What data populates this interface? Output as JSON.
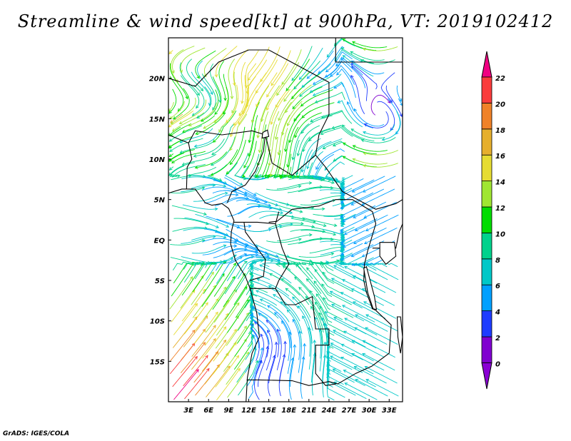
{
  "title": "Streamline & wind speed[kt] at 900hPa, VT: 2019102412",
  "footer": "GrADS: IGES/COLA",
  "map": {
    "lon_range": [
      0,
      35
    ],
    "lat_range": [
      -20,
      25
    ],
    "lat_labels": [
      {
        "lat": 20,
        "label": "20N"
      },
      {
        "lat": 15,
        "label": "15N"
      },
      {
        "lat": 10,
        "label": "10N"
      },
      {
        "lat": 5,
        "label": "5N"
      },
      {
        "lat": 0,
        "label": "EQ"
      },
      {
        "lat": -5,
        "label": "5S"
      },
      {
        "lat": -10,
        "label": "10S"
      },
      {
        "lat": -15,
        "label": "15S"
      }
    ],
    "lon_labels": [
      {
        "lon": 3,
        "label": "3E"
      },
      {
        "lon": 6,
        "label": "6E"
      },
      {
        "lon": 9,
        "label": "9E"
      },
      {
        "lon": 12,
        "label": "12E"
      },
      {
        "lon": 15,
        "label": "15E"
      },
      {
        "lon": 18,
        "label": "18E"
      },
      {
        "lon": 21,
        "label": "21E"
      },
      {
        "lon": 24,
        "label": "24E"
      },
      {
        "lon": 27,
        "label": "27E"
      },
      {
        "lon": 30,
        "label": "30E"
      },
      {
        "lon": 33,
        "label": "33E"
      }
    ]
  },
  "colorbar": {
    "unit": "kt",
    "labels": [
      "0",
      "2",
      "4",
      "6",
      "8",
      "10",
      "12",
      "14",
      "16",
      "18",
      "20",
      "22"
    ],
    "colors": [
      "#8a00d4",
      "#8000d0",
      "#1e3cff",
      "#00a0ff",
      "#00c8c8",
      "#00d28c",
      "#00dc00",
      "#a0e632",
      "#e6dc32",
      "#e6af2d",
      "#f08228",
      "#fa3c3c",
      "#f00082"
    ]
  }
}
